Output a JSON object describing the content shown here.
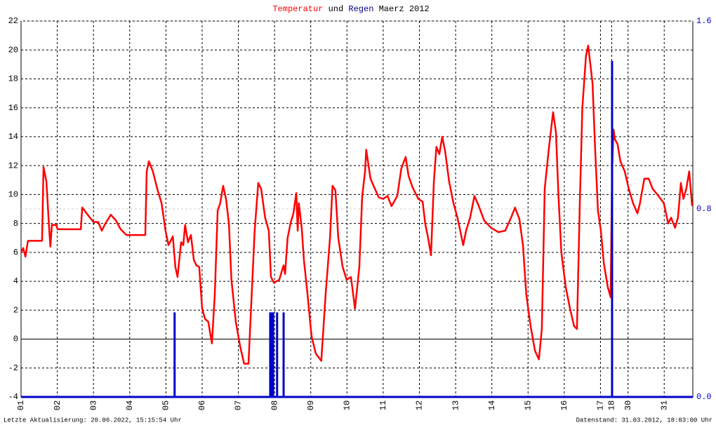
{
  "chart_data": {
    "type": "line",
    "title_parts": {
      "connector": "und",
      "suffix": "Maerz 2012"
    },
    "footer_left": "Letzte Aktualisierung: 20.06.2022, 15:15:54 Uhr",
    "footer_right": "Datenstand: 31.03.2012, 18:03:00 Uhr",
    "xlim": [
      0,
      18.55
    ],
    "xticks": [
      {
        "value": 0,
        "label": "01"
      },
      {
        "value": 1,
        "label": "02"
      },
      {
        "value": 2,
        "label": "03"
      },
      {
        "value": 3,
        "label": "04"
      },
      {
        "value": 4,
        "label": "05"
      },
      {
        "value": 5,
        "label": "06"
      },
      {
        "value": 6,
        "label": "07"
      },
      {
        "value": 7,
        "label": "08"
      },
      {
        "value": 8,
        "label": "09"
      },
      {
        "value": 9,
        "label": "10"
      },
      {
        "value": 10,
        "label": "11"
      },
      {
        "value": 11,
        "label": "12"
      },
      {
        "value": 12,
        "label": "13"
      },
      {
        "value": 13,
        "label": "14"
      },
      {
        "value": 14,
        "label": "15"
      },
      {
        "value": 15,
        "label": "16"
      },
      {
        "value": 16,
        "label": "17"
      },
      {
        "value": 16.31,
        "label": "18"
      },
      {
        "value": 16.76,
        "label": "30"
      },
      {
        "value": 17.76,
        "label": "31"
      }
    ],
    "ylim": [
      -4,
      22
    ],
    "yticks": [
      -4,
      -2,
      0,
      2,
      4,
      6,
      8,
      10,
      12,
      14,
      16,
      18,
      20,
      22
    ],
    "y2lim": [
      0,
      1.6
    ],
    "y2ticks": [
      {
        "value": 0,
        "label": "0.0"
      },
      0.8,
      1.6
    ],
    "grid": true,
    "series": [
      {
        "name": "Temperatur",
        "type": "line",
        "color": "#ff0000",
        "x": [
          0,
          0.06,
          0.12,
          0.19,
          0.58,
          0.62,
          0.7,
          0.78,
          0.81,
          0.85,
          0.97,
          1.01,
          1.65,
          1.69,
          1.84,
          2.0,
          2.13,
          2.23,
          2.33,
          2.48,
          2.62,
          2.75,
          2.91,
          3.43,
          3.47,
          3.53,
          3.64,
          3.76,
          3.88,
          3.99,
          4.07,
          4.19,
          4.26,
          4.32,
          4.42,
          4.48,
          4.53,
          4.61,
          4.69,
          4.77,
          4.84,
          4.92,
          5.0,
          5.08,
          5.17,
          5.27,
          5.35,
          5.43,
          5.5,
          5.58,
          5.66,
          5.74,
          5.81,
          5.93,
          6.05,
          6.16,
          6.28,
          6.36,
          6.45,
          6.55,
          6.63,
          6.74,
          6.84,
          6.9,
          6.98,
          7.13,
          7.25,
          7.29,
          7.36,
          7.44,
          7.52,
          7.6,
          7.64,
          7.67,
          7.75,
          7.81,
          7.91,
          8.02,
          8.14,
          8.29,
          8.41,
          8.53,
          8.6,
          8.68,
          8.76,
          8.88,
          8.99,
          9.11,
          9.22,
          9.34,
          9.42,
          9.5,
          9.53,
          9.65,
          9.77,
          9.88,
          10.0,
          10.12,
          10.23,
          10.39,
          10.5,
          10.62,
          10.7,
          10.81,
          10.97,
          11.09,
          11.16,
          11.24,
          11.32,
          11.4,
          11.47,
          11.55,
          11.63,
          11.71,
          11.82,
          11.94,
          12.05,
          12.21,
          12.29,
          12.4,
          12.52,
          12.64,
          12.79,
          12.98,
          13.18,
          13.37,
          13.53,
          13.64,
          13.76,
          13.86,
          13.95,
          14.07,
          14.19,
          14.3,
          14.38,
          14.46,
          14.57,
          14.69,
          14.77,
          14.84,
          14.92,
          15.04,
          15.16,
          15.27,
          15.35,
          15.43,
          15.5,
          15.6,
          15.66,
          15.78,
          15.85,
          15.93,
          16.01,
          16.09,
          16.2,
          16.28,
          16.32,
          16.36,
          16.4,
          16.47,
          16.55,
          16.67,
          16.78,
          16.9,
          17.02,
          17.09,
          17.21,
          17.33,
          17.44,
          17.6,
          17.75,
          17.87,
          17.95,
          18.06,
          18.14,
          18.22,
          18.29,
          18.37,
          18.45,
          18.53
        ],
        "values": [
          6.0,
          6.3,
          5.7,
          6.8,
          6.8,
          11.9,
          10.9,
          7.5,
          6.4,
          7.9,
          7.9,
          7.6,
          7.6,
          9.1,
          8.6,
          8.1,
          8.1,
          7.5,
          8.0,
          8.6,
          8.2,
          7.6,
          7.2,
          7.2,
          11.6,
          12.3,
          11.6,
          10.4,
          9.4,
          7.5,
          6.5,
          7.1,
          5.0,
          4.3,
          6.7,
          6.5,
          7.9,
          6.7,
          7.2,
          5.5,
          5.1,
          5.0,
          2.1,
          1.4,
          1.2,
          -0.3,
          3.1,
          8.9,
          9.4,
          10.6,
          9.7,
          8.0,
          4.1,
          1.2,
          -0.5,
          -1.7,
          -1.7,
          2.6,
          7.5,
          10.8,
          10.4,
          8.4,
          7.5,
          4.3,
          3.9,
          4.1,
          5.1,
          4.5,
          7.0,
          8.0,
          8.7,
          10.1,
          7.5,
          9.4,
          7.7,
          5.5,
          3.1,
          0.2,
          -1.0,
          -1.5,
          3.1,
          7.0,
          10.6,
          10.3,
          7.0,
          5.0,
          4.1,
          4.3,
          2.1,
          5.0,
          9.9,
          11.6,
          13.1,
          11.1,
          10.4,
          9.8,
          9.7,
          9.9,
          9.2,
          9.9,
          11.8,
          12.6,
          11.3,
          10.5,
          9.7,
          9.5,
          8.0,
          7.0,
          5.8,
          10.9,
          13.3,
          12.8,
          14.0,
          13.0,
          10.9,
          9.4,
          8.4,
          6.5,
          7.5,
          8.4,
          9.9,
          9.2,
          8.2,
          7.7,
          7.4,
          7.5,
          8.4,
          9.1,
          8.3,
          6.5,
          3.1,
          0.9,
          -0.8,
          -1.4,
          0.7,
          10.4,
          13.1,
          15.7,
          14.3,
          9.9,
          6.0,
          3.6,
          2.1,
          0.9,
          0.7,
          9.4,
          16.0,
          19.6,
          20.3,
          17.7,
          13.3,
          8.9,
          7.5,
          5.3,
          3.6,
          2.9,
          11.6,
          14.5,
          13.8,
          13.5,
          12.3,
          11.6,
          10.4,
          9.4,
          8.7,
          9.4,
          11.1,
          11.1,
          10.4,
          9.9,
          9.4,
          8.0,
          8.4,
          7.7,
          8.4,
          10.8,
          9.7,
          10.4,
          11.6,
          9.2
        ]
      },
      {
        "name": "Regen",
        "type": "bar",
        "axis": "y2",
        "color": "#0000cc",
        "x": [
          4.24,
          6.88,
          6.92,
          6.96,
          7.07,
          7.25,
          16.32
        ],
        "values": [
          0.36,
          0.36,
          0.36,
          0.36,
          0.36,
          0.36,
          1.43
        ]
      }
    ]
  }
}
